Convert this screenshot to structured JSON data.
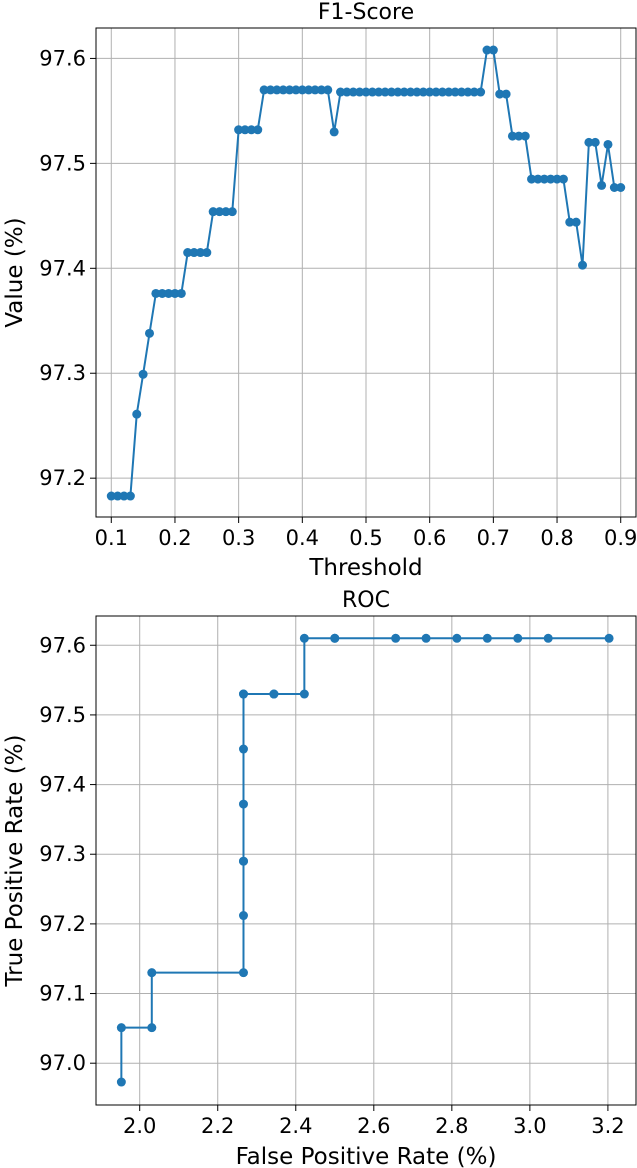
{
  "style": {
    "line_color": "#1f77b4",
    "grid_color": "#b0b0b0",
    "axis_color": "#000000",
    "background": "#ffffff"
  },
  "chart_data": [
    {
      "type": "line",
      "title": "F1-Score",
      "xlabel": "Threshold",
      "ylabel": "Value (%)",
      "xlim": [
        0.076,
        0.924
      ],
      "ylim": [
        97.163,
        97.629
      ],
      "xticks": [
        "0.1",
        "0.2",
        "0.3",
        "0.4",
        "0.5",
        "0.6",
        "0.7",
        "0.8",
        "0.9"
      ],
      "yticks": [
        "97.2",
        "97.3",
        "97.4",
        "97.5",
        "97.6"
      ],
      "grid": true,
      "markers": true,
      "series": [
        {
          "x": [
            0.1,
            0.11,
            0.12,
            0.13,
            0.14,
            0.15,
            0.16,
            0.17,
            0.18,
            0.19,
            0.2,
            0.21,
            0.22,
            0.23,
            0.24,
            0.25,
            0.26,
            0.27,
            0.28,
            0.29,
            0.3,
            0.31,
            0.32,
            0.33,
            0.34,
            0.35,
            0.36,
            0.37,
            0.38,
            0.39,
            0.4,
            0.41,
            0.42,
            0.43,
            0.44,
            0.45,
            0.46,
            0.47,
            0.48,
            0.49,
            0.5,
            0.51,
            0.52,
            0.53,
            0.54,
            0.55,
            0.56,
            0.57,
            0.58,
            0.59,
            0.6,
            0.61,
            0.62,
            0.63,
            0.64,
            0.65,
            0.66,
            0.67,
            0.68,
            0.69,
            0.7,
            0.71,
            0.72,
            0.73,
            0.74,
            0.75,
            0.76,
            0.77,
            0.78,
            0.79,
            0.8,
            0.81,
            0.82,
            0.83,
            0.84,
            0.85,
            0.86,
            0.87,
            0.88,
            0.89,
            0.9
          ],
          "y": [
            97.183,
            97.183,
            97.183,
            97.183,
            97.261,
            97.299,
            97.338,
            97.376,
            97.376,
            97.376,
            97.376,
            97.376,
            97.415,
            97.415,
            97.415,
            97.415,
            97.454,
            97.454,
            97.454,
            97.454,
            97.532,
            97.532,
            97.532,
            97.532,
            97.57,
            97.57,
            97.57,
            97.57,
            97.57,
            97.57,
            97.57,
            97.57,
            97.57,
            97.57,
            97.57,
            97.53,
            97.568,
            97.568,
            97.568,
            97.568,
            97.568,
            97.568,
            97.568,
            97.568,
            97.568,
            97.568,
            97.568,
            97.568,
            97.568,
            97.568,
            97.568,
            97.568,
            97.568,
            97.568,
            97.568,
            97.568,
            97.568,
            97.568,
            97.568,
            97.608,
            97.608,
            97.566,
            97.566,
            97.526,
            97.526,
            97.526,
            97.485,
            97.485,
            97.485,
            97.485,
            97.485,
            97.485,
            97.444,
            97.444,
            97.403,
            97.52,
            97.52,
            97.479,
            97.518,
            97.477,
            97.477
          ]
        }
      ]
    },
    {
      "type": "line",
      "title": "ROC",
      "xlabel": "False Positive Rate (%)",
      "ylabel": "True Positive Rate (%)",
      "xlim": [
        1.888,
        3.272
      ],
      "ylim": [
        96.94,
        97.642
      ],
      "xticks": [
        "2.0",
        "2.2",
        "2.4",
        "2.6",
        "2.8",
        "3.0",
        "3.2"
      ],
      "yticks": [
        "97.0",
        "97.1",
        "97.2",
        "97.3",
        "97.4",
        "97.5",
        "97.6"
      ],
      "grid": true,
      "markers": true,
      "series": [
        {
          "x": [
            1.953,
            1.953,
            2.031,
            2.031,
            2.266,
            2.266,
            2.266,
            2.266,
            2.266,
            2.266,
            2.266,
            2.266,
            2.344,
            2.344,
            2.422,
            2.422,
            2.5,
            2.5,
            2.656,
            2.734,
            2.813,
            2.891,
            2.969,
            3.047,
            3.203
          ],
          "y": [
            96.973,
            97.051,
            97.051,
            97.13,
            97.13,
            97.212,
            97.29,
            97.29,
            97.372,
            97.451,
            97.53,
            97.53,
            97.53,
            97.53,
            97.53,
            97.61,
            97.61,
            97.61,
            97.61,
            97.61,
            97.61,
            97.61,
            97.61,
            97.61,
            97.61
          ]
        }
      ]
    }
  ]
}
